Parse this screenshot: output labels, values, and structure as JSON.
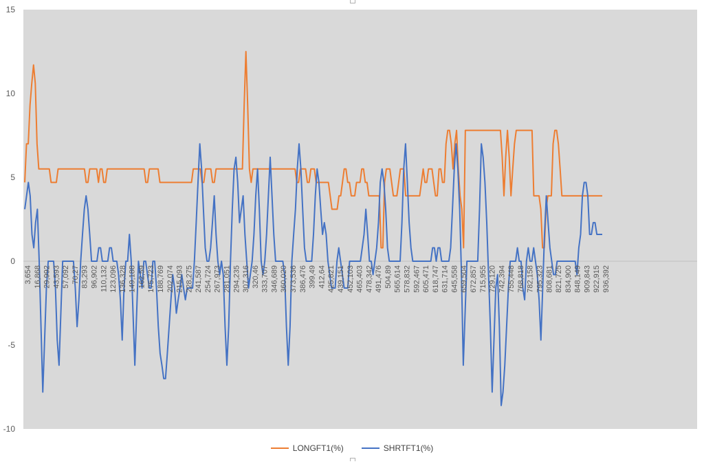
{
  "chart_data": {
    "type": "line",
    "title": "",
    "xlabel": "",
    "ylabel": "",
    "ylim": [
      -10,
      15
    ],
    "yticks": [
      -10,
      -5,
      0,
      5,
      10,
      15
    ],
    "grid": false,
    "legend_position": "bottom",
    "background": "#d9d9d9",
    "x_tick_labels": [
      "3,654",
      "16,868",
      "29,992",
      "43,593",
      "57,092",
      "70,27",
      "83,293",
      "96,902",
      "110,132",
      "123,096",
      "136,328",
      "149,188",
      "162,59",
      "175,723",
      "188,769",
      "202,074",
      "215,093",
      "228,275",
      "241,587",
      "254,724",
      "267,973",
      "281,051",
      "294,235",
      "307,316",
      "320,46",
      "333,707",
      "346,689",
      "360,020",
      "373,536",
      "386,476",
      "399,49",
      "412,64",
      "425,821",
      "439,151",
      "452,103",
      "465,403",
      "478,342",
      "491,476",
      "504,89",
      "565,614",
      "578,832",
      "592,467",
      "605,471",
      "618,747",
      "631,714",
      "645,558",
      "659,504",
      "672,857",
      "715,955",
      "729,120",
      "742,394",
      "755,448",
      "768,818",
      "782,158",
      "795,323",
      "808,681",
      "821,725",
      "834,900",
      "848,149",
      "909,843",
      "922,915",
      "936,392"
    ],
    "series": [
      {
        "name": "LONGFT1(%)",
        "color": "#ed7d31",
        "values": [
          4.7,
          7,
          7,
          9.3,
          10.6,
          11.7,
          10.6,
          7,
          5.5,
          5.5,
          5.5,
          5.5,
          5.5,
          5.5,
          5.5,
          4.7,
          4.7,
          4.7,
          4.7,
          5.5,
          5.5,
          5.5,
          5.5,
          5.5,
          5.5,
          5.5,
          5.5,
          5.5,
          5.5,
          5.5,
          5.5,
          5.5,
          5.5,
          5.5,
          5.5,
          4.7,
          4.7,
          5.5,
          5.5,
          5.5,
          5.5,
          5.5,
          4.7,
          5.5,
          5.5,
          4.7,
          4.7,
          5.5,
          5.5,
          5.5,
          5.5,
          5.5,
          5.5,
          5.5,
          5.5,
          5.5,
          5.5,
          5.5,
          5.5,
          5.5,
          5.5,
          5.5,
          5.5,
          5.5,
          5.5,
          5.5,
          5.5,
          5.5,
          5.5,
          4.7,
          4.7,
          5.5,
          5.5,
          5.5,
          5.5,
          5.5,
          5.5,
          4.7,
          4.7,
          4.7,
          4.7,
          4.7,
          4.7,
          4.7,
          4.7,
          4.7,
          4.7,
          4.7,
          4.7,
          4.7,
          4.7,
          4.7,
          4.7,
          4.7,
          4.7,
          4.7,
          5.5,
          5.5,
          5.5,
          5.5,
          5.5,
          4.7,
          4.7,
          5.5,
          5.5,
          5.5,
          5.5,
          4.7,
          4.7,
          5.5,
          5.5,
          5.5,
          5.5,
          5.5,
          5.5,
          5.5,
          5.5,
          5.5,
          5.5,
          5.5,
          5.5,
          5.5,
          5.5,
          5.5,
          5.5,
          9.3,
          12.5,
          9.3,
          5.5,
          4.7,
          5.5,
          5.5,
          5.5,
          5.5,
          5.5,
          5.5,
          5.5,
          5.5,
          5.5,
          5.5,
          5.5,
          5.5,
          5.5,
          5.5,
          5.5,
          5.5,
          5.5,
          5.5,
          5.5,
          5.5,
          5.5,
          5.5,
          5.5,
          5.5,
          5.5,
          4.7,
          4.7,
          5.5,
          5.5,
          5.5,
          5.5,
          4.7,
          4.7,
          5.5,
          5.5,
          5.5,
          4.7,
          4.7,
          4.7,
          4.7,
          4.7,
          4.7,
          4.7,
          4.7,
          3.9,
          3.1,
          3.1,
          3.1,
          3.1,
          3.9,
          3.9,
          4.7,
          5.5,
          5.5,
          4.7,
          4.7,
          3.9,
          3.9,
          3.9,
          4.7,
          4.7,
          4.7,
          5.5,
          5.5,
          4.7,
          4.7,
          3.9,
          3.9,
          3.9,
          3.9,
          3.9,
          3.9,
          3.9,
          0.8,
          0.8,
          4.7,
          5.5,
          5.5,
          5.5,
          4.7,
          3.9,
          3.9,
          3.9,
          4.7,
          5.5,
          5.5,
          5.5,
          3.9,
          3.9,
          3.9,
          3.9,
          3.9,
          3.9,
          3.9,
          3.9,
          3.9,
          4.7,
          5.5,
          4.7,
          4.7,
          5.5,
          5.5,
          5.5,
          4.7,
          3.9,
          3.9,
          5.5,
          5.5,
          4.7,
          4.7,
          7,
          7.8,
          7.8,
          7,
          5.5,
          7,
          7.8,
          5.5,
          3.9,
          3.1,
          0.8,
          7.8,
          7.8,
          7.8,
          7.8,
          7.8,
          7.8,
          7.8,
          7.8,
          7.8,
          7.8,
          7.8,
          7.8,
          7.8,
          7.8,
          7.8,
          7.8,
          7.8,
          7.8,
          7.8,
          7.8,
          7.8,
          6.2,
          3.9,
          6.2,
          7.8,
          6.2,
          3.9,
          5.5,
          7,
          7.8,
          7.8,
          7.8,
          7.8,
          7.8,
          7.8,
          7.8,
          7.8,
          7.8,
          7.8,
          3.9,
          3.9,
          3.9,
          3.9,
          3.1,
          0.8,
          0.8,
          3.1,
          3.9,
          3.9,
          3.9,
          7,
          7.8,
          7.8,
          7,
          5.5,
          3.9,
          3.9,
          3.9,
          3.9,
          3.9,
          3.9,
          3.9,
          3.9,
          3.9,
          3.9,
          3.9,
          3.9,
          3.9,
          3.9,
          3.9,
          3.9,
          3.9,
          3.9,
          3.9,
          3.9,
          3.9,
          3.9,
          3.9,
          3.9
        ]
      },
      {
        "name": "SHRTFT1(%)",
        "color": "#4472c4",
        "values": [
          3.1,
          3.9,
          4.7,
          3.9,
          1.6,
          0.8,
          2.3,
          3.1,
          0,
          -3.9,
          -7.8,
          -4.7,
          -1.6,
          0,
          0,
          0,
          0,
          -1.6,
          -4.7,
          -6.2,
          -3.1,
          0,
          0,
          0,
          0,
          0,
          0,
          0,
          -1.6,
          -3.9,
          -2.3,
          0,
          1.6,
          3.1,
          3.9,
          3.1,
          1.6,
          0,
          0,
          0,
          0,
          0.8,
          0.8,
          0,
          0,
          0,
          0,
          0.8,
          0.8,
          0,
          0,
          0,
          -0.8,
          -2.3,
          -4.7,
          -1.6,
          0,
          0,
          1.6,
          0,
          -3.1,
          -6.2,
          -3.1,
          0,
          -0.8,
          -1.6,
          0,
          0,
          -0.8,
          -1.6,
          -1.6,
          0,
          0,
          -1.6,
          -3.9,
          -5.5,
          -6.2,
          -7,
          -7,
          -5.5,
          -3.9,
          -2.3,
          -0.8,
          -1.6,
          -3.1,
          -2.3,
          -1.6,
          -0.8,
          -1.6,
          -2.3,
          -1.6,
          -1.6,
          -1.6,
          -1.6,
          0,
          2.3,
          4.7,
          7,
          5.5,
          3.1,
          0.8,
          0,
          0,
          0.8,
          2.3,
          3.9,
          1.6,
          0,
          -0.8,
          0,
          -0.8,
          -3.9,
          -6.2,
          -3.9,
          0,
          3.1,
          5.5,
          6.2,
          4.7,
          2.3,
          3.1,
          3.9,
          1.6,
          0,
          -1.6,
          -0.8,
          0,
          1.6,
          3.9,
          5.5,
          3.1,
          0,
          -0.8,
          0,
          1.6,
          3.9,
          6.2,
          3.9,
          1.6,
          0,
          0,
          0,
          0,
          0,
          -0.8,
          -3.9,
          -6.2,
          -3.9,
          0,
          1.6,
          3.1,
          5.5,
          7,
          5.5,
          3.1,
          0.8,
          0,
          0,
          0,
          0,
          1.6,
          3.9,
          5.5,
          4.7,
          3.1,
          1.6,
          2.3,
          1.6,
          0,
          -0.8,
          -1.6,
          -1.6,
          -1.6,
          0,
          0.8,
          0,
          -0.8,
          -1.6,
          -1.6,
          -1.6,
          0,
          0,
          0,
          0,
          0,
          0,
          0,
          0.8,
          1.6,
          3.1,
          1.6,
          0,
          0,
          -0.8,
          0,
          0.8,
          2.3,
          4.7,
          5.5,
          4.7,
          3.1,
          0.8,
          0,
          0,
          0,
          0,
          0,
          0,
          0,
          2.3,
          5.5,
          7,
          4.7,
          2.3,
          0.8,
          0,
          0,
          0,
          0,
          0,
          0,
          0,
          0,
          0,
          0,
          0,
          0.8,
          0.8,
          0,
          0.8,
          0.8,
          0,
          0,
          0,
          0,
          0,
          0.8,
          3.1,
          5.5,
          7,
          5.5,
          3.1,
          -0.8,
          -6.2,
          -3.1,
          0,
          0,
          0,
          0,
          0,
          0,
          0,
          3.1,
          7,
          6.2,
          4.7,
          2.3,
          -0.8,
          -3.9,
          -7.8,
          -4.7,
          -1.6,
          -0.8,
          -3.9,
          -8.6,
          -7.8,
          -6.2,
          -3.9,
          -1.6,
          0,
          0,
          0,
          0,
          0.8,
          0,
          0,
          -1.6,
          -2.3,
          0,
          0.8,
          0,
          0,
          0.8,
          0,
          -0.8,
          -2.3,
          -4.7,
          -1.6,
          1.6,
          3.9,
          2.3,
          0.8,
          0,
          -0.8,
          -0.8,
          0,
          0,
          0,
          0,
          0,
          0,
          0,
          0,
          0,
          0,
          0,
          -0.8,
          0.8,
          1.6,
          3.9,
          4.7,
          4.7,
          3.9,
          1.6,
          1.6,
          2.3,
          2.3,
          1.6,
          1.6,
          1.6,
          1.6
        ]
      }
    ]
  }
}
